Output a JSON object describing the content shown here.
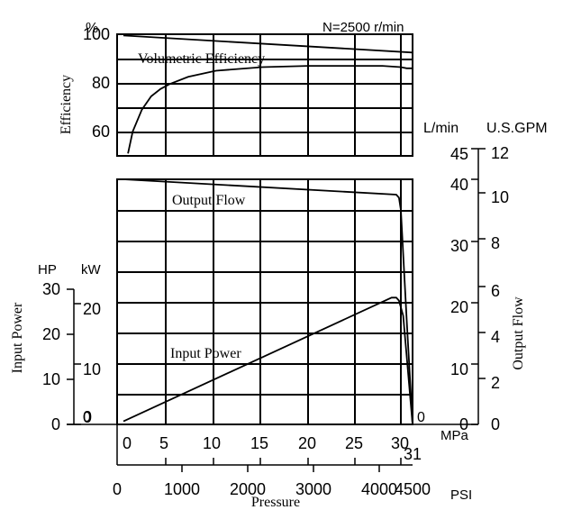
{
  "chart_data": [
    {
      "type": "line",
      "panel": "efficiency",
      "speed_label": "N=2500 r/min",
      "y_unit": "%",
      "ylabel": "Efficiency",
      "yticks": [
        60,
        80,
        100
      ],
      "ylim": [
        50,
        100
      ],
      "series": [
        {
          "name": "Volumetric Efficiency",
          "x_unit": "MPa",
          "x": [
            0.5,
            1,
            2,
            3,
            4,
            5,
            7,
            10,
            15,
            20,
            25,
            28,
            30,
            30.5,
            31
          ],
          "y": [
            51,
            60,
            69,
            74.5,
            77.5,
            79.5,
            82.5,
            85,
            86.5,
            87,
            87,
            87,
            86.5,
            86,
            86
          ]
        },
        {
          "name": "",
          "x_unit": "MPa",
          "x": [
            0,
            31
          ],
          "y": [
            99.5,
            92.5
          ]
        }
      ]
    },
    {
      "type": "line",
      "panel": "flow_and_power",
      "series": [
        {
          "name": "Output Flow",
          "y_unit": "L/min",
          "x_unit": "MPa",
          "x": [
            0,
            29.5,
            29.8,
            30.0,
            30.5,
            31
          ],
          "y": [
            40,
            37.5,
            37,
            35,
            17,
            0
          ]
        },
        {
          "name": "Input Power",
          "y_unit": "kW",
          "x_unit": "MPa",
          "x": [
            0,
            29.0,
            29.5,
            29.8,
            30.2,
            31
          ],
          "y": [
            0.5,
            21,
            21,
            20.5,
            18,
            0
          ]
        }
      ],
      "left_axes": {
        "hp": {
          "label": "HP",
          "ticks": [
            0,
            10,
            20,
            30
          ]
        },
        "kw": {
          "label": "kW",
          "ticks": [
            0,
            10,
            20
          ]
        },
        "title": "Input Power"
      },
      "right_axes": {
        "lmin": {
          "label": "L/min",
          "ticks": [
            0,
            10,
            20,
            30,
            40,
            45
          ]
        },
        "gpm": {
          "label": "U.S.GPM",
          "ticks": [
            0,
            2,
            4,
            6,
            8,
            10,
            12
          ]
        },
        "title": "Output Flow"
      },
      "x_axes": {
        "mpa": {
          "label": "MPa",
          "ticks": [
            0,
            5,
            10,
            15,
            20,
            25,
            30,
            31
          ]
        },
        "psi": {
          "label": "PSI",
          "ticks": [
            0,
            1000,
            2000,
            3000,
            4000,
            4500
          ]
        },
        "title": "Pressure"
      }
    }
  ]
}
